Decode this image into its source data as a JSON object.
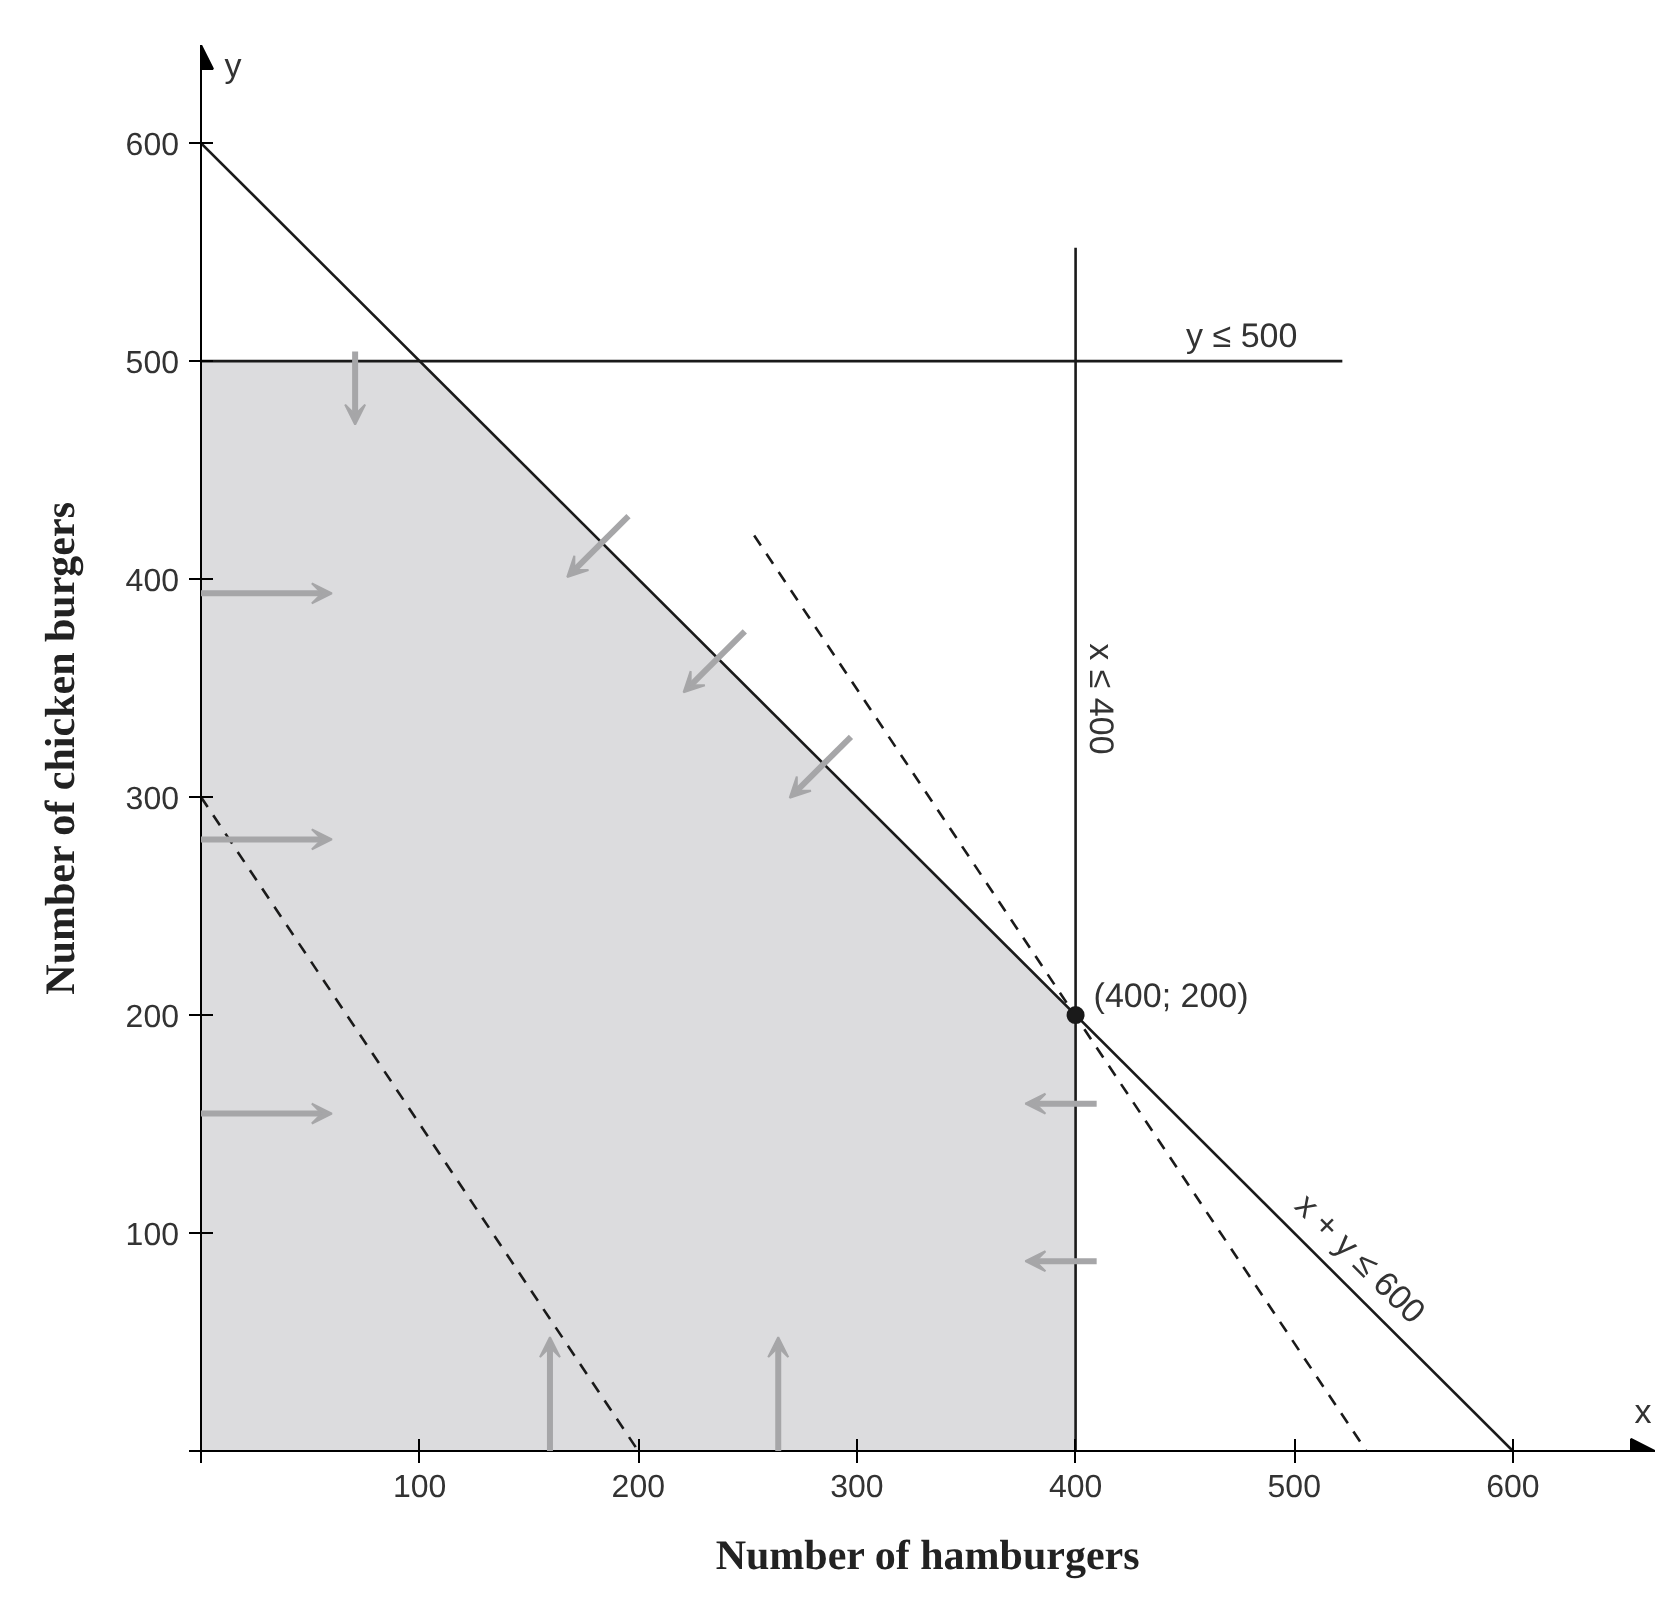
{
  "chart_data": {
    "type": "line",
    "xlabel": "Number of hamburgers",
    "ylabel": "Number of chicken burgers",
    "xlim": [
      0,
      665
    ],
    "ylim": [
      0,
      645
    ],
    "xticks": [
      {
        "value": 0,
        "label": null
      },
      100,
      200,
      300,
      400,
      500,
      600
    ],
    "yticks": [
      {
        "value": 0,
        "label": null
      },
      100,
      200,
      300,
      400,
      500,
      600
    ],
    "grid": false,
    "series": [
      {
        "type": "area",
        "color": "#dcdcde",
        "x": [
          0,
          100,
          400
        ],
        "values": [
          500,
          500,
          200
        ]
      },
      {
        "color": "#1a1a1a",
        "line_style": "solid",
        "x": [
          0,
          600
        ],
        "values": [
          600,
          0
        ]
      },
      {
        "color": "#1a1a1a",
        "line_style": "solid",
        "x": [
          0,
          522
        ],
        "values": [
          500,
          500
        ]
      },
      {
        "color": "#1a1a1a",
        "line_style": "solid",
        "x": [
          400,
          400
        ],
        "values": [
          0,
          552
        ]
      },
      {
        "color": "#1a1a1a",
        "line_style": "dashed",
        "x": [
          0,
          200
        ],
        "values": [
          300,
          0
        ]
      },
      {
        "color": "#1a1a1a",
        "line_style": "dashed",
        "x": [
          253,
          533
        ],
        "values": [
          420,
          0
        ]
      },
      {
        "type": "scatter",
        "color": "#1a1a1a",
        "marker": "circle",
        "x": [
          400
        ],
        "values": [
          200
        ],
        "value_labels": [
          "(400; 200)"
        ]
      }
    ],
    "annotations": [
      {
        "text": "y ≤ 500",
        "x": 476,
        "y": 503
      },
      {
        "text": "x ≤ 400",
        "x": 403,
        "y": 345
      },
      {
        "text": "x + y ≤ 600",
        "x": 524,
        "y": 82
      },
      "x",
      "y"
    ]
  }
}
